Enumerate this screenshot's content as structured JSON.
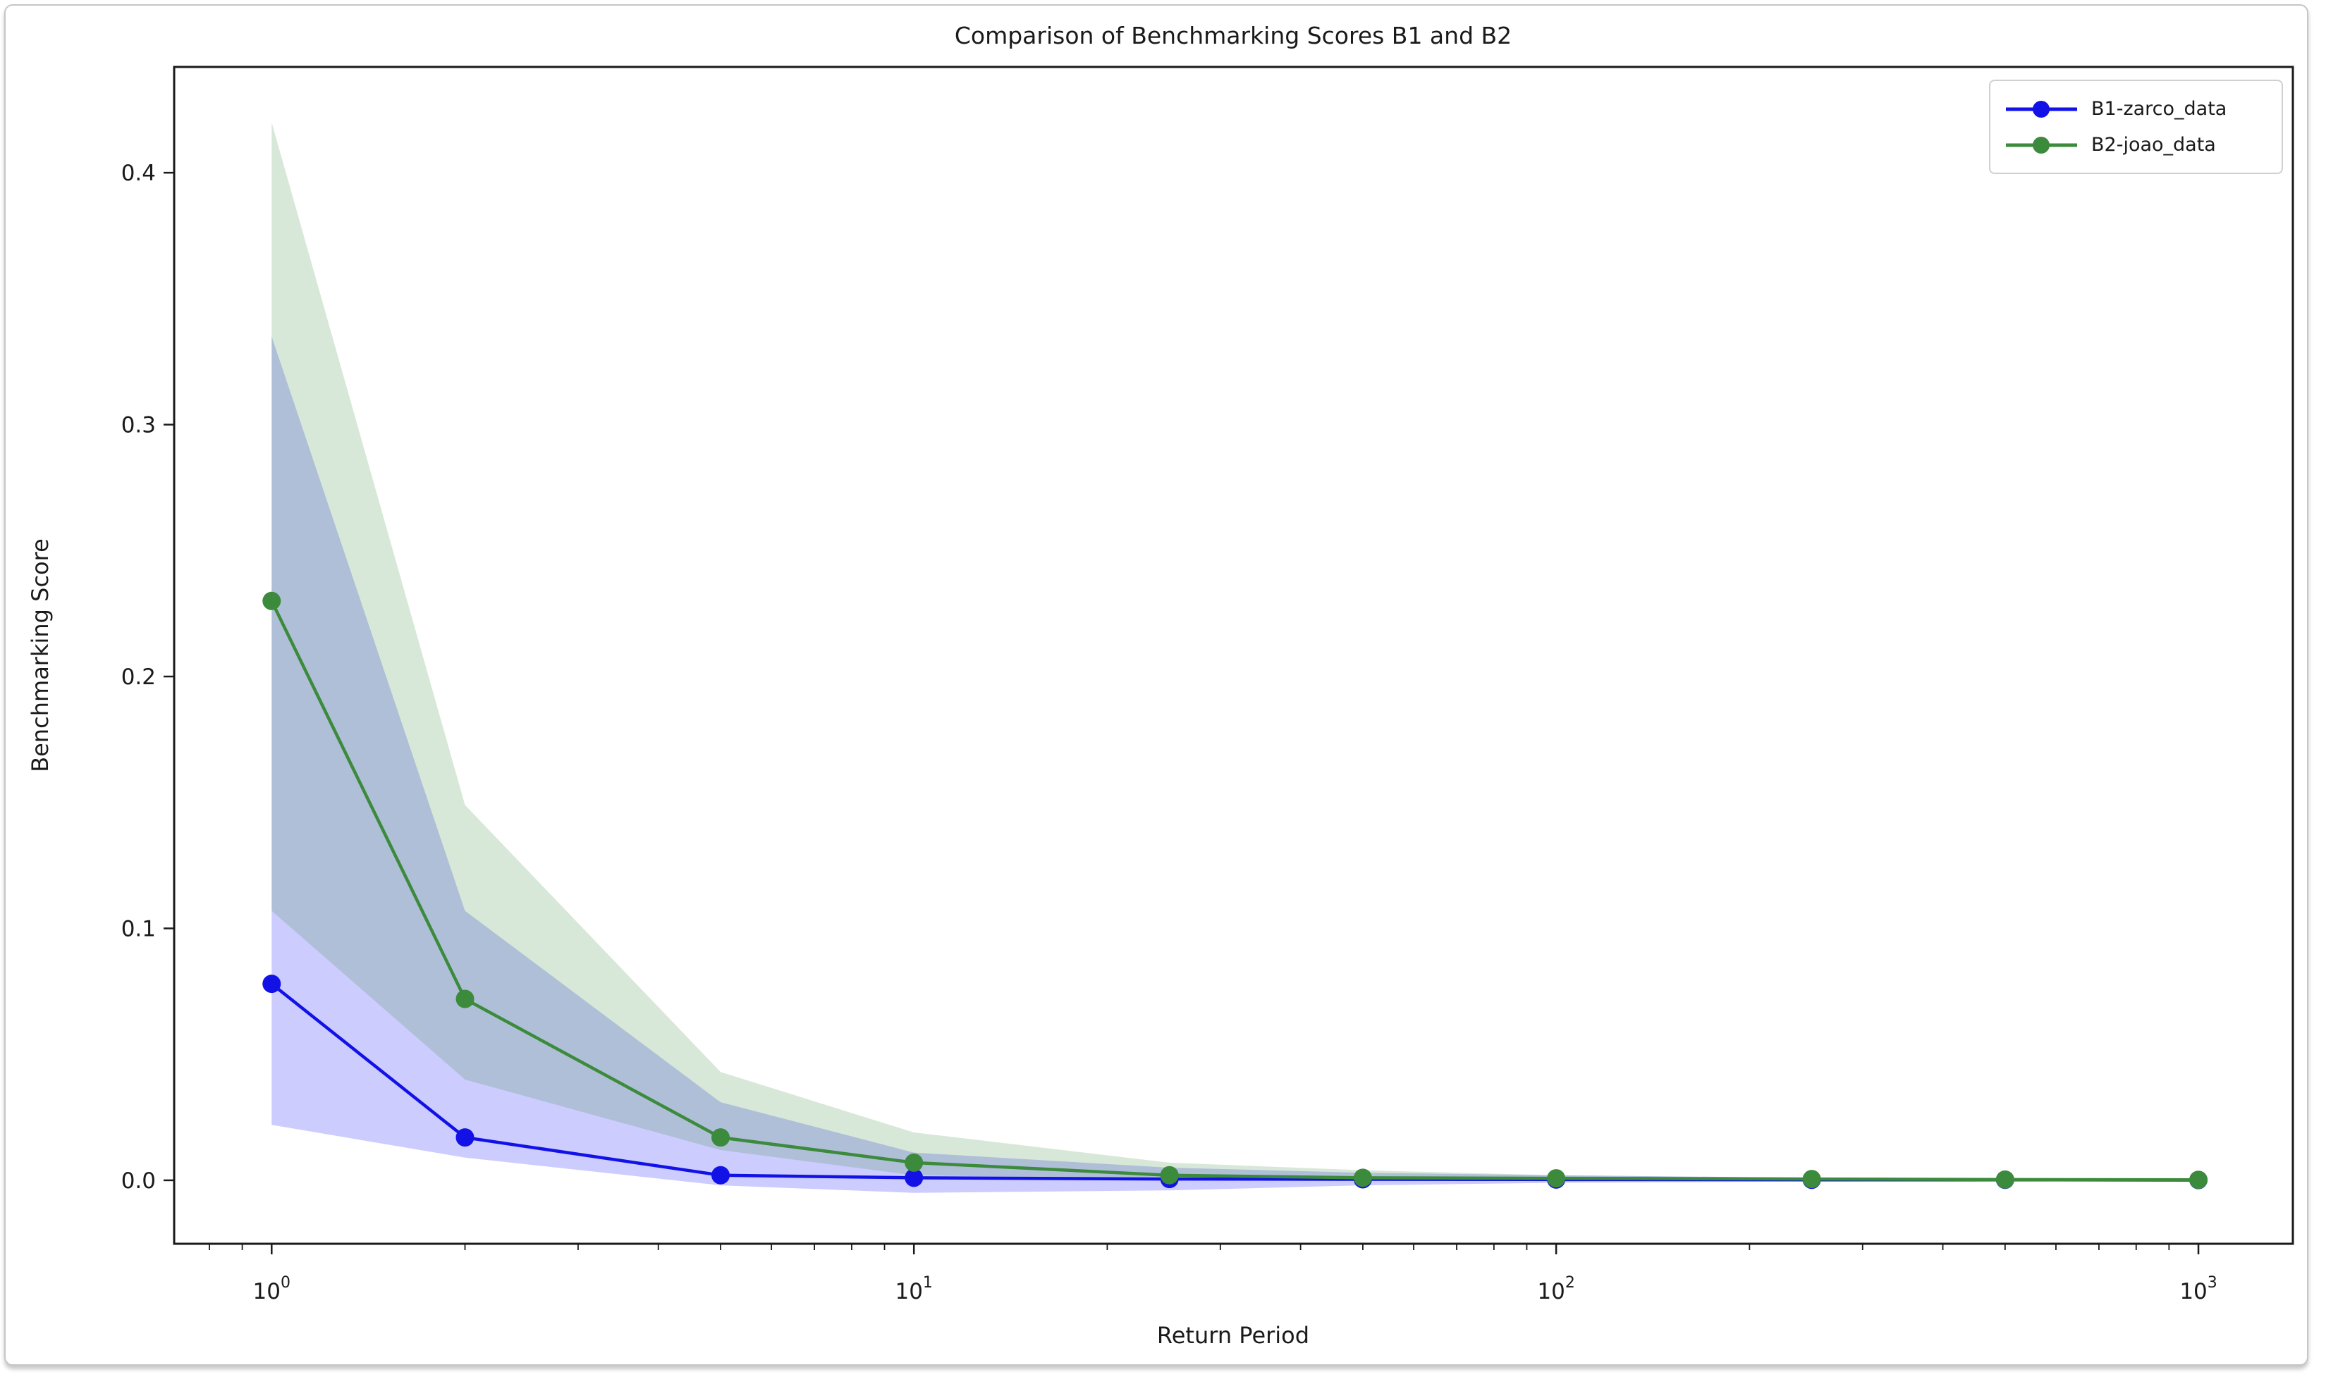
{
  "figure": {
    "background": "#ffffff",
    "card_border_color": "#c6c6c6",
    "text_color": "#1a1a1a"
  },
  "chart_data": {
    "type": "line",
    "title": "Comparison of Benchmarking Scores B1 and B2",
    "xlabel": "Return Period",
    "ylabel": "Benchmarking Score",
    "x_scale": "log",
    "grid": false,
    "legend_position": "upper right",
    "x": [
      1,
      2,
      5,
      10,
      25,
      50,
      100,
      250,
      500,
      1000
    ],
    "xlim": [
      0.705,
      1403
    ],
    "ylim": [
      -0.0252,
      0.442
    ],
    "y_ticks": [
      0,
      0.1,
      0.2,
      0.3,
      0.4
    ],
    "x_major_ticks": [
      1,
      10,
      100,
      1000
    ],
    "series": [
      {
        "name": "B1-zarco_data",
        "color": "#1212e6",
        "band_color": "#0000ff",
        "band_opacity": 0.2,
        "values": [
          0.078,
          0.017,
          0.002,
          0.001,
          0.0005,
          0.0004,
          0.0003,
          0.0002,
          0.0002,
          0.0001
        ],
        "band_lower": [
          0.022,
          0.009,
          -0.002,
          -0.005,
          -0.004,
          -0.002,
          -0.001,
          -0.0005,
          -0.0003,
          -0.0002
        ],
        "band_upper": [
          0.335,
          0.107,
          0.031,
          0.011,
          0.005,
          0.003,
          0.002,
          0.001,
          0.0006,
          0.0004
        ]
      },
      {
        "name": "B2-joao_data",
        "color": "#3c8a3c",
        "band_color": "#3c8a3c",
        "band_opacity": 0.2,
        "values": [
          0.23,
          0.072,
          0.017,
          0.007,
          0.002,
          0.001,
          0.0008,
          0.0005,
          0.0003,
          0.0002
        ],
        "band_lower": [
          0.107,
          0.04,
          0.012,
          0.002,
          0.0005,
          0.0002,
          0.0001,
          0,
          0,
          0
        ],
        "band_upper": [
          0.42,
          0.149,
          0.043,
          0.019,
          0.007,
          0.004,
          0.002,
          0.001,
          0.0006,
          0.0004
        ]
      }
    ]
  }
}
